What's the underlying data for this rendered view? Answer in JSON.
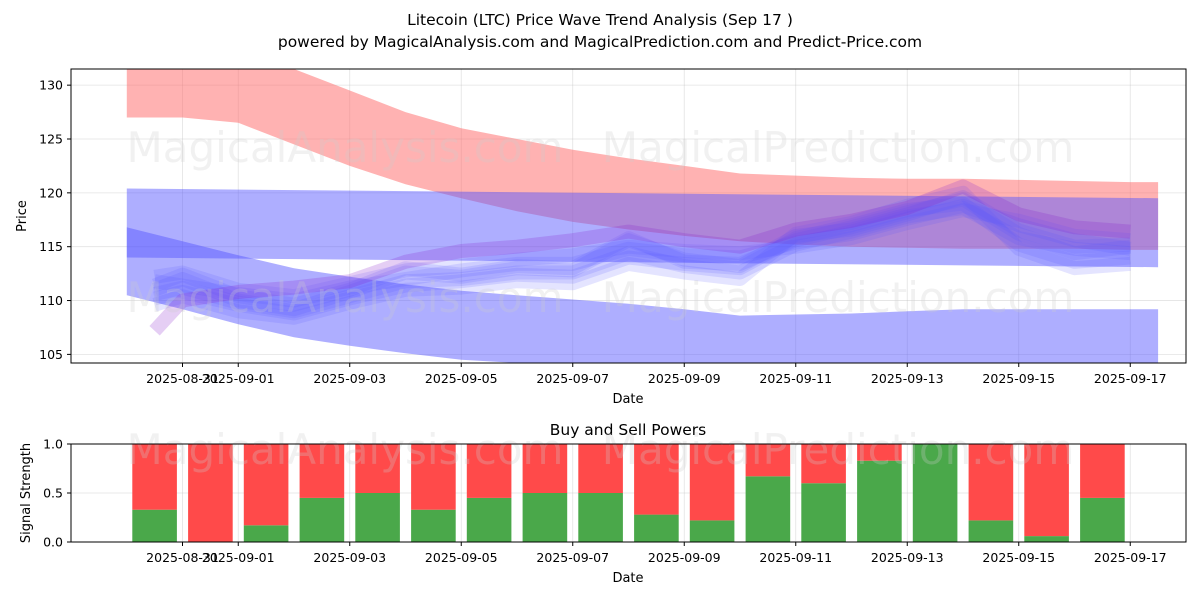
{
  "title_line1": "Litecoin (LTC) Price Wave Trend Analysis (Sep 17 )",
  "title_line2": "powered by MagicalAnalysis.com and MagicalPrediction.com and Predict-Price.com",
  "watermarks": [
    "MagicalAnalysis.com",
    "MagicalPrediction.com"
  ],
  "colors": {
    "red_band": "#ff6666",
    "blue_band": "#5555ff",
    "buy": "#4aa84a",
    "sell": "#ff4a4a",
    "purple_wave": "#8822cc"
  },
  "chart_data": [
    {
      "type": "area",
      "title": "",
      "xlabel": "Date",
      "ylabel": "Price",
      "xlim": [
        "2025-08-29",
        "2025-09-18"
      ],
      "ylim": [
        104.2,
        131.5
      ],
      "yticks": [
        105,
        110,
        115,
        120,
        125,
        130
      ],
      "xticks": [
        "2025-08-31",
        "2025-09-01",
        "2025-09-03",
        "2025-09-05",
        "2025-09-07",
        "2025-09-09",
        "2025-09-11",
        "2025-09-13",
        "2025-09-15",
        "2025-09-17"
      ],
      "bands": [
        {
          "name": "red upper band",
          "color": "red",
          "x": [
            "2025-08-30",
            "2025-08-31",
            "2025-09-01",
            "2025-09-02",
            "2025-09-03",
            "2025-09-04",
            "2025-09-05",
            "2025-09-06",
            "2025-09-07",
            "2025-09-08",
            "2025-09-09",
            "2025-09-10",
            "2025-09-11",
            "2025-09-12",
            "2025-09-13",
            "2025-09-14",
            "2025-09-15",
            "2025-09-16",
            "2025-09-17",
            "2025-09-17T12:00"
          ],
          "upper": [
            131.5,
            131.5,
            131.5,
            131.5,
            129.5,
            127.5,
            126.0,
            125.0,
            124.0,
            123.2,
            122.5,
            121.8,
            121.6,
            121.4,
            121.3,
            121.3,
            121.2,
            121.1,
            121.0,
            121.0
          ],
          "lower": [
            127.0,
            127.0,
            126.5,
            124.5,
            122.5,
            120.8,
            119.5,
            118.3,
            117.3,
            116.6,
            116.0,
            115.5,
            115.2,
            115.0,
            114.9,
            114.8,
            114.8,
            114.8,
            114.7,
            114.7
          ]
        },
        {
          "name": "blue upper band",
          "color": "blue",
          "x": [
            "2025-08-30",
            "2025-09-17T12:00"
          ],
          "upper": [
            120.4,
            119.5
          ],
          "lower": [
            114.0,
            113.1
          ]
        },
        {
          "name": "blue lower band",
          "color": "blue",
          "x": [
            "2025-08-30",
            "2025-08-31",
            "2025-09-01",
            "2025-09-02",
            "2025-09-03",
            "2025-09-04",
            "2025-09-05",
            "2025-09-06",
            "2025-09-07",
            "2025-09-08",
            "2025-09-09",
            "2025-09-10",
            "2025-09-11",
            "2025-09-12",
            "2025-09-13",
            "2025-09-14",
            "2025-09-15",
            "2025-09-16",
            "2025-09-17",
            "2025-09-17T12:00"
          ],
          "upper": [
            116.8,
            115.5,
            114.2,
            113.0,
            112.2,
            111.5,
            110.9,
            110.5,
            110.1,
            109.7,
            109.2,
            108.6,
            108.7,
            108.8,
            109.0,
            109.2,
            109.2,
            109.2,
            109.2,
            109.2
          ],
          "lower": [
            110.5,
            109.2,
            107.8,
            106.6,
            105.8,
            105.1,
            104.5,
            104.2,
            104.2,
            104.2,
            104.2,
            104.2,
            104.2,
            104.2,
            104.2,
            104.2,
            104.2,
            104.2,
            104.2,
            104.2
          ]
        }
      ],
      "wave_x": [
        "2025-08-30T12:00",
        "2025-08-31",
        "2025-09-01",
        "2025-09-02",
        "2025-09-03",
        "2025-09-04",
        "2025-09-05",
        "2025-09-06",
        "2025-09-07",
        "2025-09-08",
        "2025-09-09",
        "2025-09-10",
        "2025-09-11",
        "2025-09-12",
        "2025-09-13",
        "2025-09-14",
        "2025-09-15",
        "2025-09-16",
        "2025-09-17"
      ],
      "wave_series": [
        {
          "name": "wave 1",
          "values": [
            111.0,
            112.0,
            110.0,
            109.2,
            110.8,
            112.6,
            112.2,
            113.0,
            112.8,
            115.6,
            113.8,
            113.2,
            116.0,
            116.6,
            118.0,
            119.6,
            116.5,
            115.0,
            115.2
          ]
        },
        {
          "name": "wave 2",
          "values": [
            111.8,
            111.4,
            110.6,
            110.0,
            111.2,
            112.0,
            112.8,
            113.4,
            113.4,
            114.8,
            114.2,
            114.0,
            115.4,
            116.2,
            117.6,
            118.8,
            117.0,
            115.6,
            114.8
          ]
        },
        {
          "name": "wave 3",
          "values": [
            110.2,
            110.8,
            109.6,
            108.8,
            110.2,
            111.4,
            111.8,
            112.4,
            112.2,
            114.0,
            113.4,
            113.0,
            115.8,
            117.0,
            118.4,
            119.0,
            115.2,
            113.6,
            114.0
          ]
        },
        {
          "name": "wave 4",
          "values": [
            112.2,
            112.6,
            111.0,
            110.4,
            111.6,
            112.8,
            113.2,
            113.8,
            114.2,
            115.0,
            114.6,
            114.4,
            115.0,
            115.8,
            117.2,
            118.4,
            117.4,
            116.0,
            115.6
          ]
        },
        {
          "name": "wave 5",
          "values": [
            109.6,
            110.4,
            109.0,
            108.4,
            109.8,
            111.0,
            111.2,
            111.8,
            111.6,
            113.4,
            112.6,
            112.0,
            116.2,
            117.2,
            118.8,
            120.0,
            114.8,
            113.0,
            113.4
          ]
        },
        {
          "name": "wave 6",
          "values": [
            111.4,
            112.4,
            110.4,
            109.6,
            111.0,
            113.0,
            112.4,
            113.2,
            113.0,
            115.8,
            113.6,
            113.4,
            115.6,
            116.8,
            118.2,
            119.4,
            116.2,
            114.4,
            115.0
          ]
        },
        {
          "name": "wave 7",
          "values": [
            110.6,
            111.2,
            109.8,
            109.0,
            110.4,
            111.8,
            112.0,
            112.6,
            112.6,
            114.4,
            113.2,
            112.6,
            115.2,
            116.4,
            117.8,
            118.6,
            115.8,
            114.8,
            114.4
          ]
        },
        {
          "name": "wave 8",
          "values": [
            107.2,
            110.0,
            110.8,
            111.2,
            111.8,
            113.6,
            114.6,
            115.0,
            115.6,
            116.4,
            115.6,
            115.0,
            116.6,
            117.4,
            118.6,
            120.6,
            118.0,
            116.8,
            116.4
          ]
        }
      ]
    },
    {
      "type": "bar",
      "title": "Buy and Sell Powers",
      "xlabel": "Date",
      "ylabel": "Signal Strength",
      "xlim": [
        "2025-08-29",
        "2025-09-18"
      ],
      "ylim": [
        0,
        1.0
      ],
      "yticks": [
        0.0,
        0.5,
        1.0
      ],
      "ytick_labels": [
        "0.0",
        "0.5",
        "1.0"
      ],
      "xticks": [
        "2025-08-31",
        "2025-09-01",
        "2025-09-03",
        "2025-09-05",
        "2025-09-07",
        "2025-09-09",
        "2025-09-11",
        "2025-09-13",
        "2025-09-15",
        "2025-09-17"
      ],
      "categories": [
        "2025-08-30",
        "2025-08-31",
        "2025-09-01",
        "2025-09-02",
        "2025-09-03",
        "2025-09-04",
        "2025-09-05",
        "2025-09-06",
        "2025-09-07",
        "2025-09-08",
        "2025-09-09",
        "2025-09-10",
        "2025-09-11",
        "2025-09-12",
        "2025-09-13",
        "2025-09-14",
        "2025-09-15",
        "2025-09-16",
        "2025-09-17"
      ],
      "series": [
        {
          "name": "Buy",
          "color": "green",
          "values": [
            0.33,
            0.0,
            0.17,
            0.45,
            0.5,
            0.33,
            0.45,
            0.5,
            0.5,
            0.28,
            0.22,
            0.67,
            0.6,
            0.83,
            1.0,
            0.22,
            0.06,
            0.45,
            0.0
          ]
        },
        {
          "name": "Sell",
          "color": "red",
          "values": [
            0.67,
            1.0,
            0.83,
            0.55,
            0.5,
            0.67,
            0.55,
            0.5,
            0.5,
            0.72,
            0.78,
            0.33,
            0.4,
            0.17,
            0.0,
            0.78,
            0.94,
            0.55,
            0.0
          ]
        }
      ]
    }
  ]
}
